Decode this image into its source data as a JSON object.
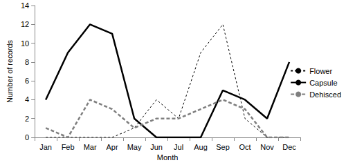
{
  "chart_data": {
    "type": "line",
    "x_label": "Month",
    "y_label": "Number of records",
    "categories": [
      "Jan",
      "Feb",
      "Mar",
      "Apr",
      "May",
      "Jun",
      "Jul",
      "Aug",
      "Sep",
      "Oct",
      "Nov",
      "Dec"
    ],
    "series": [
      {
        "name": "Flower",
        "color": "#000000",
        "line_style": "dashed",
        "values": [
          0,
          0,
          0,
          0,
          1,
          4,
          2,
          9,
          12,
          2,
          0,
          0
        ]
      },
      {
        "name": "Capsule",
        "color": "#000000",
        "line_style": "solid",
        "values": [
          4,
          9,
          12,
          11,
          2,
          0,
          0,
          0,
          5,
          4,
          2,
          8
        ]
      },
      {
        "name": "Dehisced",
        "color": "#7f7f7f",
        "line_style": "dashed",
        "values": [
          1,
          0,
          4,
          3,
          1,
          2,
          2,
          3,
          4,
          3,
          0,
          0
        ]
      }
    ],
    "ylim": [
      0,
      14
    ],
    "yticks": [
      0,
      2,
      4,
      6,
      8,
      10,
      12,
      14
    ],
    "grid": false,
    "legend": "right"
  }
}
